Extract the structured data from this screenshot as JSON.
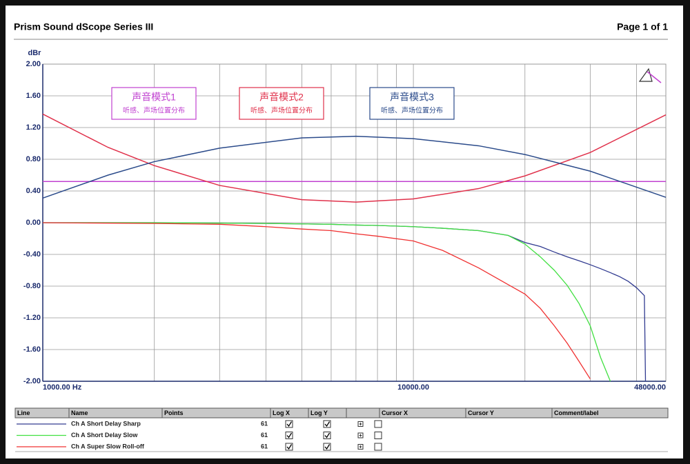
{
  "header": {
    "title": "Prism Sound dScope Series III",
    "page": "Page 1 of 1"
  },
  "chart_data": {
    "type": "line",
    "y_label": "dBr",
    "log_x": true,
    "grid": true,
    "xlim": [
      1000,
      48000
    ],
    "ylim": [
      -2,
      2
    ],
    "xticks": [
      {
        "value": 1000,
        "label": "1000.00 Hz"
      },
      {
        "value": 10000,
        "label": "10000.00"
      },
      {
        "value": 48000,
        "label": "48000.00"
      }
    ],
    "x_minor_gridlines": [
      2000,
      3000,
      4000,
      5000,
      6000,
      7000,
      8000,
      9000,
      20000,
      30000,
      40000
    ],
    "yticks": [
      {
        "value": 2,
        "label": "2.00"
      },
      {
        "value": 1.6,
        "label": "1.60"
      },
      {
        "value": 1.2,
        "label": "1.20"
      },
      {
        "value": 0.8,
        "label": "0.80"
      },
      {
        "value": 0.4,
        "label": "0.40"
      },
      {
        "value": 0,
        "label": "0.00"
      },
      {
        "value": -0.4,
        "label": "-0.40"
      },
      {
        "value": -0.8,
        "label": "-0.80"
      },
      {
        "value": -1.2,
        "label": "-1.20"
      },
      {
        "value": -1.6,
        "label": "-1.60"
      },
      {
        "value": -2,
        "label": "-2.00"
      }
    ],
    "x": [
      1000,
      2000,
      3000,
      4000,
      5000,
      6000,
      7000,
      8000,
      10000,
      12000,
      15000,
      18000,
      20000,
      22000,
      24000,
      26000,
      28000,
      30000,
      32000,
      34000,
      36000,
      38000,
      40000,
      42000,
      42300
    ],
    "series": [
      {
        "name": "Ch A Short Delay Sharp",
        "color": "#303a90",
        "points": "61",
        "values": [
          0,
          0,
          -0.005,
          -0.01,
          -0.015,
          -0.02,
          -0.03,
          -0.035,
          -0.05,
          -0.07,
          -0.1,
          -0.16,
          -0.25,
          -0.3,
          -0.37,
          -0.43,
          -0.48,
          -0.53,
          -0.58,
          -0.63,
          -0.68,
          -0.74,
          -0.82,
          -0.92,
          -2
        ]
      },
      {
        "name": "Ch A Short Delay Slow",
        "color": "#40e040",
        "points": "61",
        "values": [
          0,
          0,
          -0.005,
          -0.01,
          -0.015,
          -0.02,
          -0.03,
          -0.035,
          -0.05,
          -0.07,
          -0.1,
          -0.16,
          -0.27,
          -0.43,
          -0.6,
          -0.79,
          -1.02,
          -1.3,
          -1.7,
          -2,
          null,
          null,
          null,
          null,
          null
        ]
      },
      {
        "name": "Ch A Super Slow Roll-off",
        "color": "#f03030",
        "points": "61",
        "values": [
          0,
          -0.01,
          -0.02,
          -0.05,
          -0.08,
          -0.1,
          -0.14,
          -0.17,
          -0.23,
          -0.35,
          -0.57,
          -0.78,
          -0.9,
          -1.08,
          -1.3,
          -1.52,
          -1.75,
          -1.97,
          null,
          null,
          null,
          null,
          null,
          null,
          null
        ]
      }
    ],
    "overlays": [
      {
        "label": "声音模式1",
        "sublabel": "听感、声场位置分布",
        "color": "#c040d0",
        "x": [
          1000,
          48000
        ],
        "values": [
          0.52,
          0.52
        ]
      },
      {
        "label": "声音模式2",
        "sublabel": "听感、声场位置分布",
        "color": "#e0304a",
        "x": [
          1000,
          1500,
          2000,
          3000,
          5000,
          7000,
          10000,
          15000,
          20000,
          30000,
          48000
        ],
        "values": [
          1.37,
          0.95,
          0.72,
          0.47,
          0.29,
          0.26,
          0.3,
          0.43,
          0.59,
          0.885,
          1.36
        ]
      },
      {
        "label": "声音模式3",
        "sublabel": "听感、声场位置分布",
        "color": "#2a4a8a",
        "x": [
          1000,
          1500,
          2000,
          3000,
          5000,
          7000,
          10000,
          15000,
          20000,
          30000,
          48000
        ],
        "values": [
          0.31,
          0.6,
          0.77,
          0.94,
          1.07,
          1.09,
          1.06,
          0.97,
          0.86,
          0.65,
          0.32
        ]
      }
    ],
    "legend_table": {
      "headers": [
        "Line",
        "Name",
        "Points",
        "Log X",
        "Log Y",
        "Cursor X",
        "Cursor Y",
        "Comment/label"
      ]
    }
  }
}
